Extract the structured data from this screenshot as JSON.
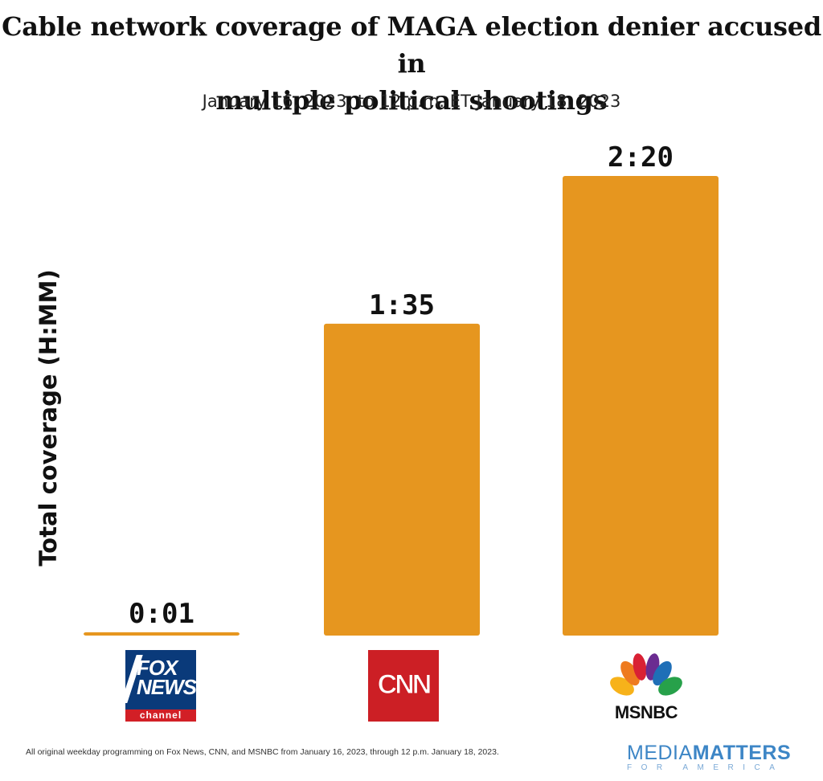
{
  "title_line1": "Cable network coverage of MAGA election denier accused in",
  "title_line2": "multiple political shootings",
  "subtitle": "January 16, 2023, to 12 p.m. ET January 18, 2023",
  "footnote": "All original weekday programming on Fox News, CNN, and MSNBC from January 16, 2023, through 12 p.m. January 18, 2023.",
  "brand": {
    "line1_light": "MEDIA",
    "line1_bold": "MATTERS",
    "line2": "FOR AMERICA"
  },
  "logos": {
    "fox": {
      "line1": "FOX",
      "line2": "NEWS",
      "line3": "channel"
    },
    "cnn": {
      "text": "CNN"
    },
    "msnbc": {
      "text": "MSNBC"
    }
  },
  "colors": {
    "bar": "#E6961F"
  },
  "chart_data": {
    "type": "bar",
    "title": "Cable network coverage of MAGA election denier accused in multiple political shootings",
    "subtitle": "January 16, 2023, to 12 p.m. ET January 18, 2023",
    "ylabel": "Total coverage (H:MM)",
    "xlabel": "",
    "categories": [
      "Fox News",
      "CNN",
      "MSNBC"
    ],
    "values": [
      1,
      95,
      140
    ],
    "value_labels": [
      "0:01",
      "1:35",
      "2:20"
    ],
    "value_unit": "minutes",
    "ylim": [
      0,
      140
    ],
    "grid": false,
    "legend": "none"
  }
}
